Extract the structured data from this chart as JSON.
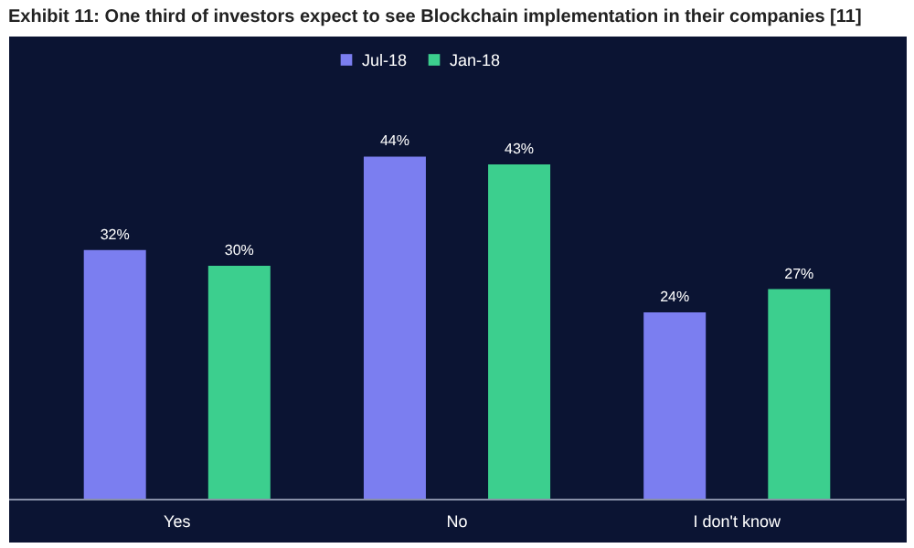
{
  "chart_data": {
    "type": "bar",
    "title": "Exhibit 11: One third of investors expect to see Blockchain implementation in their companies [11]",
    "categories": [
      "Yes",
      "No",
      "I don't know"
    ],
    "series": [
      {
        "name": "Jul-18",
        "color": "#7b7ef0",
        "values": [
          32,
          44,
          24
        ],
        "value_labels": [
          "32%",
          "44%",
          "24%"
        ]
      },
      {
        "name": "Jan-18",
        "color": "#3ccf8e",
        "values": [
          30,
          43,
          27
        ],
        "value_labels": [
          "30%",
          "43%",
          "27%"
        ]
      }
    ],
    "legend": "top",
    "grid": false
  }
}
